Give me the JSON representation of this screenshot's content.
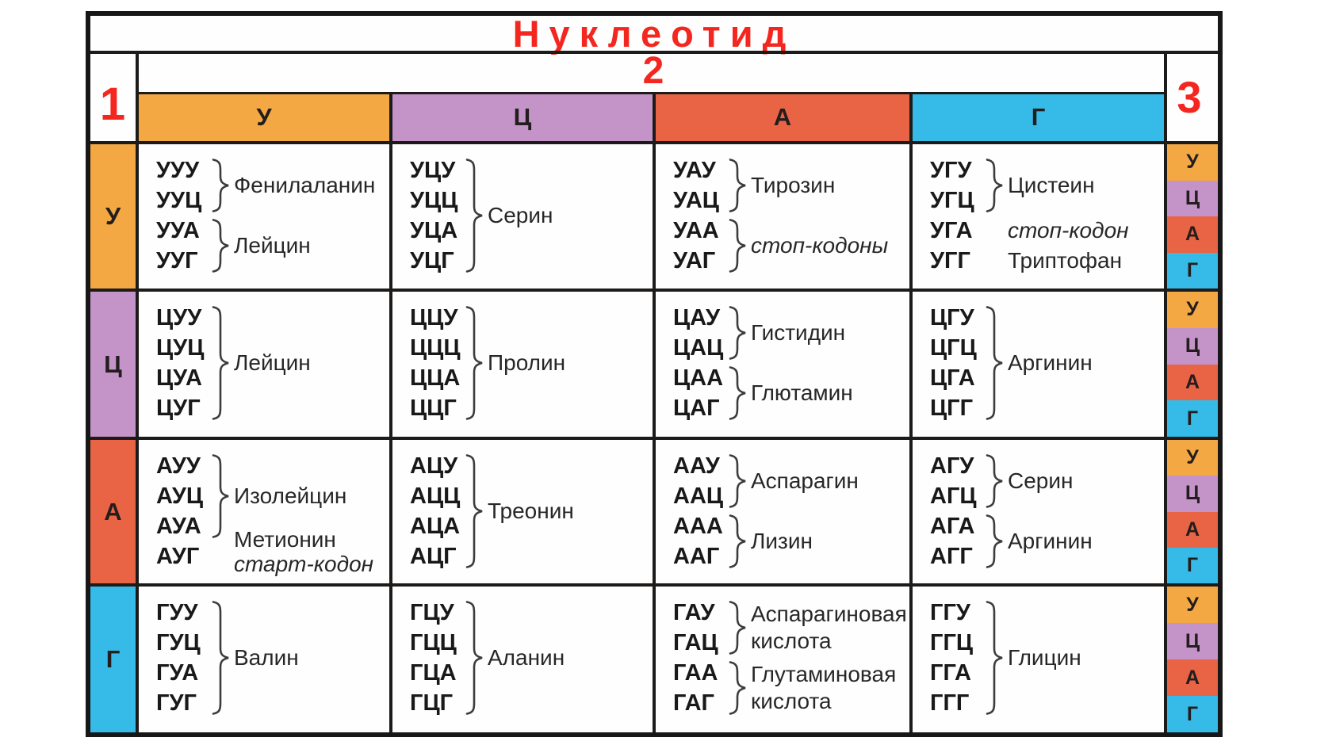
{
  "title": "Нуклеотид",
  "position_labels": {
    "nucleotide1": "1",
    "nucleotide2": "2",
    "nucleotide3": "3"
  },
  "colors": {
    "У": "#f3a843",
    "Ц": "#c494c8",
    "А": "#e96445",
    "Г": "#36bae7",
    "red_text": "#f3271f",
    "grid": "#1d1b19",
    "codon_text": "#191919",
    "label_text": "#272727",
    "bracket": "#3c3c3c",
    "background": "#ffffff"
  },
  "chart_data": {
    "type": "table",
    "title": "Нуклеотид",
    "position_labels": {
      "first": "1",
      "second": "2",
      "third": "3"
    },
    "columns": [
      "У",
      "Ц",
      "А",
      "Г"
    ],
    "rows": [
      "У",
      "Ц",
      "А",
      "Г"
    ],
    "third_column": [
      "У",
      "Ц",
      "А",
      "Г"
    ],
    "cells": [
      [
        [
          {
            "codons": [
              "УУУ",
              "УУЦ"
            ],
            "bracket": true,
            "label": [
              {
                "text": "Фенилаланин",
                "italic": false
              }
            ]
          },
          {
            "codons": [
              "УУА",
              "УУГ"
            ],
            "bracket": true,
            "label": [
              {
                "text": "Лейцин",
                "italic": false
              }
            ]
          }
        ],
        [
          {
            "codons": [
              "УЦУ",
              "УЦЦ",
              "УЦА",
              "УЦГ"
            ],
            "bracket": true,
            "label": [
              {
                "text": "Серин",
                "italic": false
              }
            ]
          }
        ],
        [
          {
            "codons": [
              "УАУ",
              "УАЦ"
            ],
            "bracket": true,
            "label": [
              {
                "text": "Тирозин",
                "italic": false
              }
            ]
          },
          {
            "codons": [
              "УАА",
              "УАГ"
            ],
            "bracket": true,
            "label": [
              {
                "text": "стоп-кодоны",
                "italic": true
              }
            ]
          }
        ],
        [
          {
            "codons": [
              "УГУ",
              "УГЦ"
            ],
            "bracket": true,
            "label": [
              {
                "text": "Цистеин",
                "italic": false
              }
            ]
          },
          {
            "codons": [
              "УГА"
            ],
            "bracket": false,
            "label": [
              {
                "text": "стоп-кодон",
                "italic": true
              }
            ]
          },
          {
            "codons": [
              "УГГ"
            ],
            "bracket": false,
            "label": [
              {
                "text": "Триптофан",
                "italic": false
              }
            ]
          }
        ]
      ],
      [
        [
          {
            "codons": [
              "ЦУУ",
              "ЦУЦ",
              "ЦУА",
              "ЦУГ"
            ],
            "bracket": true,
            "label": [
              {
                "text": "Лейцин",
                "italic": false
              }
            ]
          }
        ],
        [
          {
            "codons": [
              "ЦЦУ",
              "ЦЦЦ",
              "ЦЦА",
              "ЦЦГ"
            ],
            "bracket": true,
            "label": [
              {
                "text": "Пролин",
                "italic": false
              }
            ]
          }
        ],
        [
          {
            "codons": [
              "ЦАУ",
              "ЦАЦ"
            ],
            "bracket": true,
            "label": [
              {
                "text": "Гистидин",
                "italic": false
              }
            ]
          },
          {
            "codons": [
              "ЦАА",
              "ЦАГ"
            ],
            "bracket": true,
            "label": [
              {
                "text": "Глютамин",
                "italic": false
              }
            ]
          }
        ],
        [
          {
            "codons": [
              "ЦГУ",
              "ЦГЦ",
              "ЦГА",
              "ЦГГ"
            ],
            "bracket": true,
            "label": [
              {
                "text": "Аргинин",
                "italic": false
              }
            ]
          }
        ]
      ],
      [
        [
          {
            "codons": [
              "АУУ",
              "АУЦ",
              "АУА"
            ],
            "bracket": true,
            "label": [
              {
                "text": "Изолейцин",
                "italic": false
              }
            ]
          },
          {
            "codons": [
              "АУГ"
            ],
            "bracket": false,
            "label": [
              {
                "text": "Метионин",
                "italic": false
              },
              {
                "text": "старт-кодон",
                "italic": true
              }
            ]
          }
        ],
        [
          {
            "codons": [
              "АЦУ",
              "АЦЦ",
              "АЦА",
              "АЦГ"
            ],
            "bracket": true,
            "label": [
              {
                "text": "Треонин",
                "italic": false
              }
            ]
          }
        ],
        [
          {
            "codons": [
              "ААУ",
              "ААЦ"
            ],
            "bracket": true,
            "label": [
              {
                "text": "Аспарагин",
                "italic": false
              }
            ]
          },
          {
            "codons": [
              "ААА",
              "ААГ"
            ],
            "bracket": true,
            "label": [
              {
                "text": "Лизин",
                "italic": false
              }
            ]
          }
        ],
        [
          {
            "codons": [
              "АГУ",
              "АГЦ"
            ],
            "bracket": true,
            "label": [
              {
                "text": "Серин",
                "italic": false
              }
            ]
          },
          {
            "codons": [
              "АГА",
              "АГГ"
            ],
            "bracket": true,
            "label": [
              {
                "text": "Аргинин",
                "italic": false
              }
            ]
          }
        ]
      ],
      [
        [
          {
            "codons": [
              "ГУУ",
              "ГУЦ",
              "ГУА",
              "ГУГ"
            ],
            "bracket": true,
            "label": [
              {
                "text": "Валин",
                "italic": false
              }
            ]
          }
        ],
        [
          {
            "codons": [
              "ГЦУ",
              "ГЦЦ",
              "ГЦА",
              "ГЦГ"
            ],
            "bracket": true,
            "label": [
              {
                "text": "Аланин",
                "italic": false
              }
            ]
          }
        ],
        [
          {
            "codons": [
              "ГАУ",
              "ГАЦ"
            ],
            "bracket": true,
            "label": [
              {
                "text": "Аспарагиновая",
                "italic": false
              },
              {
                "text": "кислота",
                "italic": false
              }
            ]
          },
          {
            "codons": [
              "ГАА",
              "ГАГ"
            ],
            "bracket": true,
            "label": [
              {
                "text": "Глутаминовая",
                "italic": false
              },
              {
                "text": "кислота",
                "italic": false
              }
            ]
          }
        ],
        [
          {
            "codons": [
              "ГГУ",
              "ГГЦ",
              "ГГА",
              "ГГГ"
            ],
            "bracket": true,
            "label": [
              {
                "text": "Глицин",
                "italic": false
              }
            ]
          }
        ]
      ]
    ]
  }
}
